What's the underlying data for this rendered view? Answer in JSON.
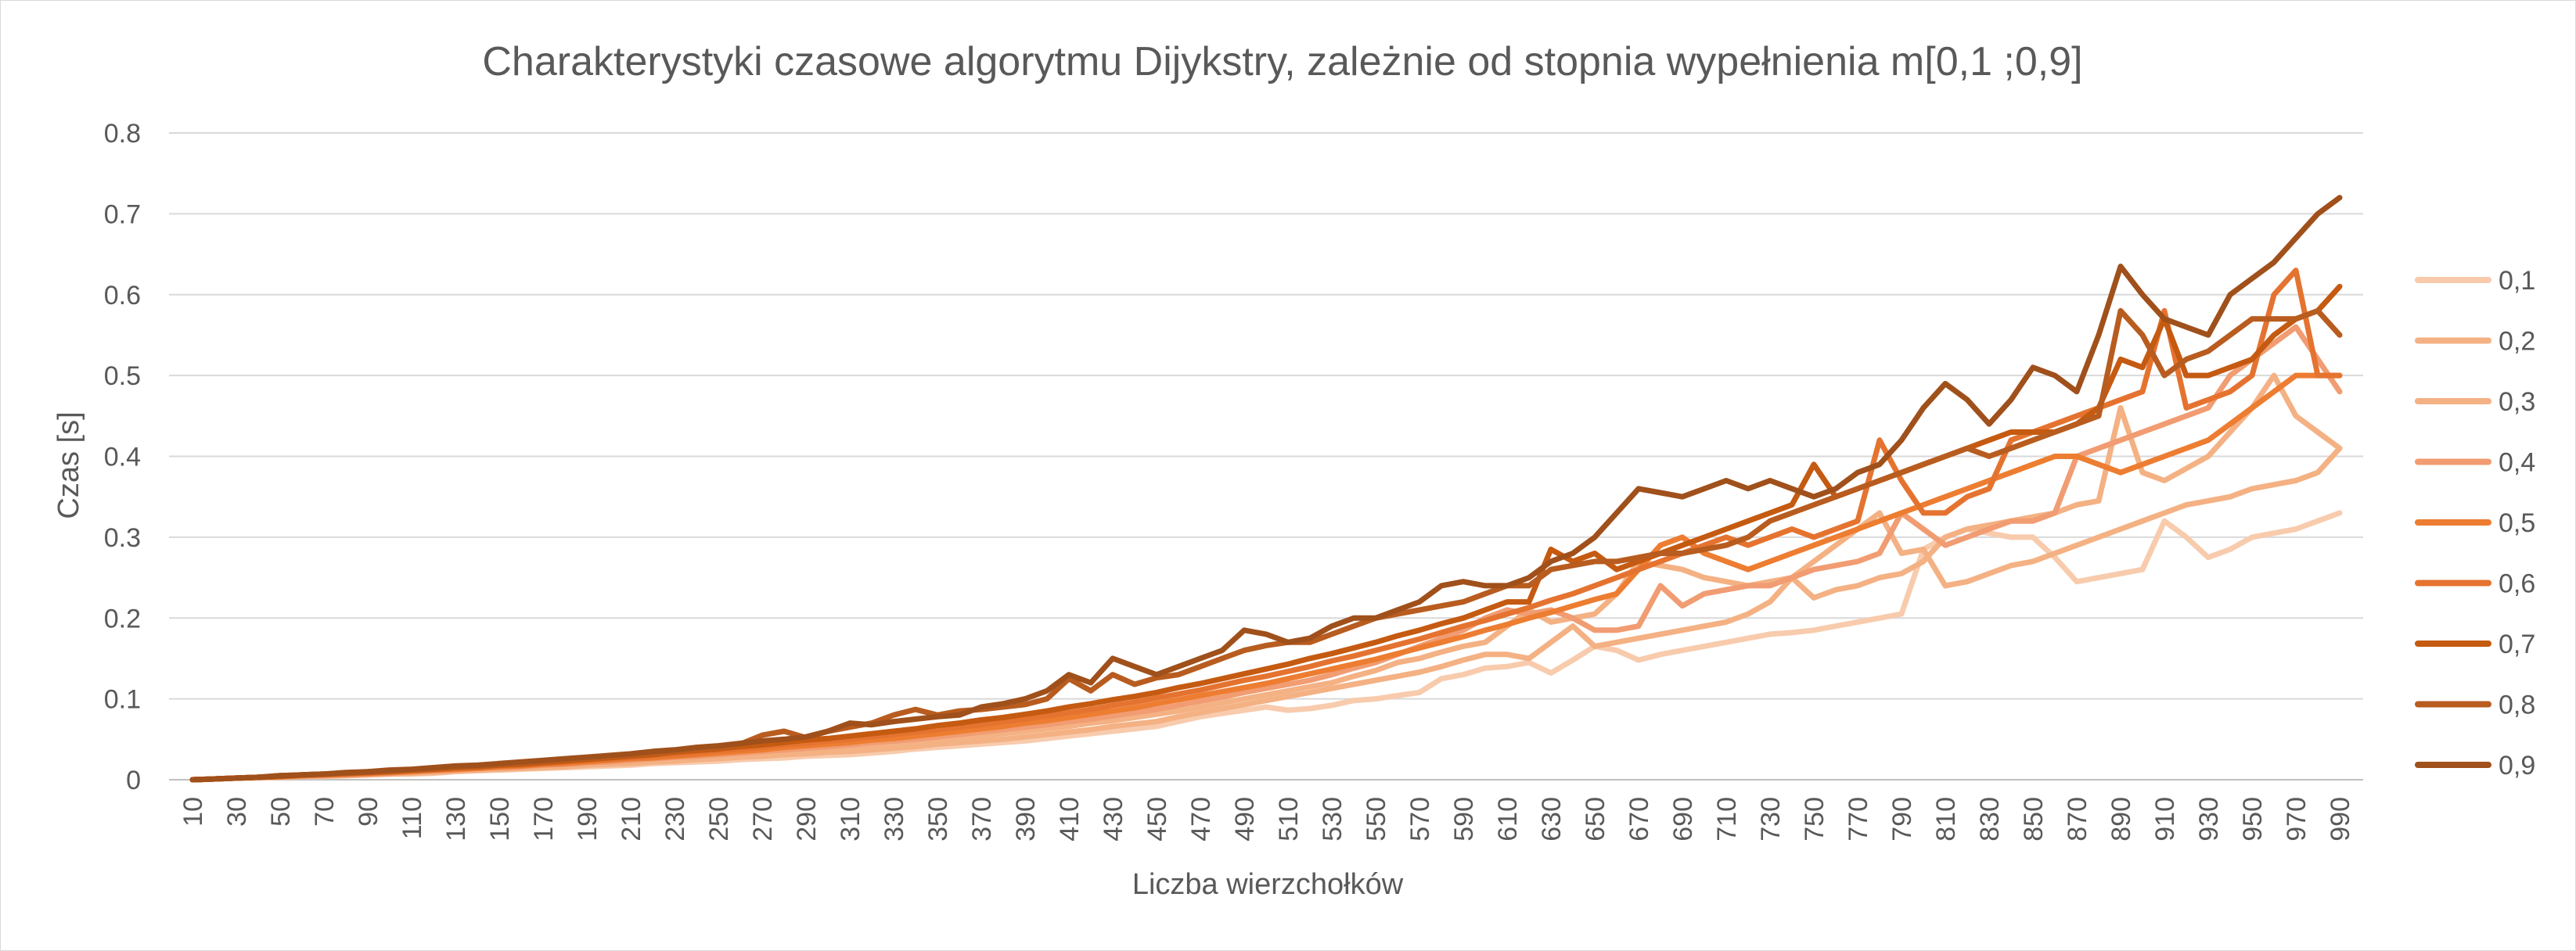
{
  "chart_data": {
    "type": "line",
    "title": "Charakterystyki czasowe algorytmu Dijykstry, zależnie od stopnia wypełnienia m[0,1 ;0,9]",
    "xlabel": "Liczba wierzchołków",
    "ylabel": "Czas [s]",
    "ylim": [
      0,
      0.8
    ],
    "yticks": [
      "0",
      "0.1",
      "0.2",
      "0.3",
      "0.4",
      "0.5",
      "0.6",
      "0.7",
      "0.8"
    ],
    "grid": true,
    "legend_position": "right",
    "x": [
      10,
      20,
      30,
      40,
      50,
      60,
      70,
      80,
      90,
      100,
      110,
      120,
      130,
      140,
      150,
      160,
      170,
      180,
      190,
      200,
      210,
      220,
      230,
      240,
      250,
      260,
      270,
      280,
      290,
      300,
      310,
      320,
      330,
      340,
      350,
      360,
      370,
      380,
      390,
      400,
      410,
      420,
      430,
      440,
      450,
      460,
      470,
      480,
      490,
      500,
      510,
      520,
      530,
      540,
      550,
      560,
      570,
      580,
      590,
      600,
      610,
      620,
      630,
      640,
      650,
      660,
      670,
      680,
      690,
      700,
      710,
      720,
      730,
      740,
      750,
      760,
      770,
      780,
      790,
      800,
      810,
      820,
      830,
      840,
      850,
      860,
      870,
      880,
      890,
      900,
      910,
      920,
      930,
      940,
      950,
      960,
      970,
      980,
      990
    ],
    "xticks": [
      "10",
      "30",
      "50",
      "70",
      "90",
      "110",
      "130",
      "150",
      "170",
      "190",
      "210",
      "230",
      "250",
      "270",
      "290",
      "310",
      "330",
      "350",
      "370",
      "390",
      "410",
      "430",
      "450",
      "470",
      "490",
      "510",
      "530",
      "550",
      "570",
      "590",
      "610",
      "630",
      "650",
      "670",
      "690",
      "710",
      "730",
      "750",
      "770",
      "790",
      "810",
      "830",
      "850",
      "870",
      "890",
      "910",
      "930",
      "950",
      "970",
      "990"
    ],
    "series": [
      {
        "name": "0,1",
        "color": "#f8cbad",
        "values": [
          0,
          0.001,
          0.002,
          0.002,
          0.003,
          0.004,
          0.004,
          0.005,
          0.006,
          0.007,
          0.007,
          0.008,
          0.01,
          0.011,
          0.012,
          0.013,
          0.014,
          0.015,
          0.016,
          0.017,
          0.018,
          0.02,
          0.021,
          0.022,
          0.023,
          0.025,
          0.026,
          0.027,
          0.029,
          0.03,
          0.031,
          0.033,
          0.035,
          0.038,
          0.04,
          0.042,
          0.044,
          0.046,
          0.048,
          0.051,
          0.054,
          0.057,
          0.06,
          0.063,
          0.066,
          0.072,
          0.078,
          0.082,
          0.086,
          0.09,
          0.086,
          0.088,
          0.092,
          0.098,
          0.1,
          0.104,
          0.108,
          0.125,
          0.13,
          0.138,
          0.14,
          0.145,
          0.132,
          0.148,
          0.165,
          0.16,
          0.148,
          0.155,
          0.16,
          0.165,
          0.17,
          0.175,
          0.18,
          0.182,
          0.185,
          0.19,
          0.195,
          0.2,
          0.205,
          0.285,
          0.3,
          0.31,
          0.305,
          0.3,
          0.3,
          0.275,
          0.245,
          0.25,
          0.255,
          0.26,
          0.32,
          0.3,
          0.275,
          0.285,
          0.3,
          0.305,
          0.31,
          0.32,
          0.33
        ]
      },
      {
        "name": "0,2",
        "color": "#f4b183",
        "values": [
          0,
          0.001,
          0.002,
          0.003,
          0.003,
          0.004,
          0.005,
          0.005,
          0.006,
          0.007,
          0.008,
          0.009,
          0.011,
          0.012,
          0.013,
          0.014,
          0.015,
          0.016,
          0.018,
          0.019,
          0.02,
          0.022,
          0.023,
          0.025,
          0.026,
          0.028,
          0.029,
          0.031,
          0.032,
          0.034,
          0.035,
          0.037,
          0.039,
          0.041,
          0.044,
          0.046,
          0.048,
          0.05,
          0.053,
          0.056,
          0.059,
          0.062,
          0.066,
          0.069,
          0.072,
          0.078,
          0.083,
          0.088,
          0.093,
          0.098,
          0.103,
          0.108,
          0.113,
          0.118,
          0.123,
          0.128,
          0.133,
          0.14,
          0.148,
          0.155,
          0.155,
          0.15,
          0.17,
          0.19,
          0.165,
          0.17,
          0.175,
          0.18,
          0.185,
          0.19,
          0.195,
          0.205,
          0.22,
          0.25,
          0.27,
          0.29,
          0.31,
          0.33,
          0.28,
          0.285,
          0.24,
          0.245,
          0.255,
          0.265,
          0.27,
          0.28,
          0.29,
          0.3,
          0.31,
          0.32,
          0.33,
          0.34,
          0.345,
          0.35,
          0.36,
          0.365,
          0.37,
          0.38,
          0.41
        ]
      },
      {
        "name": "0,3",
        "color": "#f4b183",
        "values": [
          0,
          0.001,
          0.002,
          0.003,
          0.004,
          0.004,
          0.005,
          0.006,
          0.007,
          0.008,
          0.009,
          0.01,
          0.012,
          0.013,
          0.014,
          0.015,
          0.017,
          0.018,
          0.019,
          0.021,
          0.022,
          0.024,
          0.025,
          0.027,
          0.029,
          0.031,
          0.032,
          0.034,
          0.036,
          0.038,
          0.04,
          0.042,
          0.044,
          0.046,
          0.049,
          0.051,
          0.054,
          0.057,
          0.06,
          0.063,
          0.066,
          0.07,
          0.073,
          0.077,
          0.081,
          0.085,
          0.09,
          0.095,
          0.1,
          0.105,
          0.11,
          0.115,
          0.12,
          0.128,
          0.135,
          0.145,
          0.15,
          0.158,
          0.165,
          0.17,
          0.19,
          0.21,
          0.195,
          0.2,
          0.205,
          0.23,
          0.27,
          0.265,
          0.26,
          0.25,
          0.245,
          0.24,
          0.245,
          0.25,
          0.225,
          0.235,
          0.24,
          0.25,
          0.255,
          0.27,
          0.3,
          0.31,
          0.315,
          0.32,
          0.325,
          0.33,
          0.34,
          0.345,
          0.46,
          0.38,
          0.37,
          0.385,
          0.4,
          0.43,
          0.46,
          0.5,
          0.45,
          0.43,
          0.41
        ]
      },
      {
        "name": "0,4",
        "color": "#f19c72",
        "values": [
          0,
          0.001,
          0.002,
          0.003,
          0.004,
          0.005,
          0.005,
          0.006,
          0.007,
          0.008,
          0.01,
          0.011,
          0.012,
          0.014,
          0.015,
          0.016,
          0.018,
          0.019,
          0.021,
          0.022,
          0.024,
          0.026,
          0.028,
          0.029,
          0.031,
          0.033,
          0.035,
          0.037,
          0.039,
          0.041,
          0.043,
          0.046,
          0.048,
          0.05,
          0.053,
          0.056,
          0.059,
          0.062,
          0.065,
          0.068,
          0.072,
          0.075,
          0.079,
          0.083,
          0.087,
          0.092,
          0.097,
          0.102,
          0.108,
          0.113,
          0.118,
          0.123,
          0.13,
          0.138,
          0.145,
          0.155,
          0.165,
          0.175,
          0.185,
          0.2,
          0.21,
          0.205,
          0.21,
          0.2,
          0.185,
          0.185,
          0.19,
          0.24,
          0.215,
          0.23,
          0.235,
          0.24,
          0.24,
          0.25,
          0.26,
          0.265,
          0.27,
          0.28,
          0.33,
          0.31,
          0.29,
          0.3,
          0.31,
          0.32,
          0.32,
          0.33,
          0.4,
          0.41,
          0.42,
          0.43,
          0.44,
          0.45,
          0.46,
          0.5,
          0.52,
          0.54,
          0.56,
          0.52,
          0.48
        ]
      },
      {
        "name": "0,5",
        "color": "#ed7d31",
        "values": [
          0,
          0.001,
          0.002,
          0.003,
          0.004,
          0.005,
          0.006,
          0.007,
          0.008,
          0.009,
          0.01,
          0.012,
          0.013,
          0.014,
          0.016,
          0.017,
          0.019,
          0.02,
          0.022,
          0.024,
          0.026,
          0.027,
          0.029,
          0.031,
          0.033,
          0.035,
          0.037,
          0.04,
          0.042,
          0.044,
          0.046,
          0.049,
          0.051,
          0.054,
          0.057,
          0.06,
          0.063,
          0.066,
          0.07,
          0.073,
          0.077,
          0.081,
          0.085,
          0.089,
          0.094,
          0.099,
          0.104,
          0.109,
          0.114,
          0.119,
          0.125,
          0.131,
          0.137,
          0.143,
          0.149,
          0.156,
          0.163,
          0.17,
          0.177,
          0.185,
          0.192,
          0.2,
          0.207,
          0.215,
          0.223,
          0.23,
          0.26,
          0.29,
          0.3,
          0.28,
          0.27,
          0.26,
          0.27,
          0.28,
          0.29,
          0.3,
          0.31,
          0.32,
          0.33,
          0.34,
          0.35,
          0.36,
          0.37,
          0.38,
          0.39,
          0.4,
          0.4,
          0.39,
          0.38,
          0.39,
          0.4,
          0.41,
          0.42,
          0.44,
          0.46,
          0.48,
          0.5,
          0.5,
          0.5
        ]
      },
      {
        "name": "0,6",
        "color": "#e57330",
        "values": [
          0,
          0.001,
          0.002,
          0.003,
          0.004,
          0.005,
          0.006,
          0.007,
          0.008,
          0.01,
          0.011,
          0.012,
          0.014,
          0.015,
          0.017,
          0.018,
          0.02,
          0.022,
          0.024,
          0.025,
          0.027,
          0.029,
          0.031,
          0.033,
          0.036,
          0.038,
          0.04,
          0.043,
          0.045,
          0.048,
          0.05,
          0.053,
          0.056,
          0.059,
          0.062,
          0.065,
          0.068,
          0.072,
          0.075,
          0.079,
          0.083,
          0.087,
          0.092,
          0.096,
          0.101,
          0.106,
          0.111,
          0.117,
          0.123,
          0.128,
          0.134,
          0.14,
          0.147,
          0.153,
          0.16,
          0.167,
          0.174,
          0.182,
          0.19,
          0.197,
          0.205,
          0.213,
          0.222,
          0.23,
          0.24,
          0.25,
          0.26,
          0.27,
          0.28,
          0.29,
          0.3,
          0.29,
          0.3,
          0.31,
          0.3,
          0.31,
          0.32,
          0.42,
          0.37,
          0.33,
          0.33,
          0.35,
          0.36,
          0.42,
          0.43,
          0.44,
          0.45,
          0.46,
          0.47,
          0.48,
          0.58,
          0.46,
          0.47,
          0.48,
          0.5,
          0.6,
          0.63,
          0.5,
          0.5
        ]
      },
      {
        "name": "0,7",
        "color": "#c55a11",
        "values": [
          0,
          0.001,
          0.002,
          0.003,
          0.004,
          0.006,
          0.007,
          0.008,
          0.009,
          0.01,
          0.012,
          0.013,
          0.015,
          0.016,
          0.018,
          0.019,
          0.021,
          0.023,
          0.025,
          0.027,
          0.029,
          0.031,
          0.034,
          0.036,
          0.038,
          0.041,
          0.043,
          0.046,
          0.049,
          0.051,
          0.054,
          0.057,
          0.06,
          0.063,
          0.067,
          0.07,
          0.074,
          0.077,
          0.081,
          0.085,
          0.09,
          0.094,
          0.099,
          0.103,
          0.108,
          0.114,
          0.119,
          0.125,
          0.131,
          0.137,
          0.143,
          0.15,
          0.156,
          0.163,
          0.17,
          0.178,
          0.185,
          0.193,
          0.2,
          0.21,
          0.22,
          0.22,
          0.285,
          0.27,
          0.28,
          0.26,
          0.27,
          0.28,
          0.29,
          0.3,
          0.31,
          0.32,
          0.33,
          0.34,
          0.39,
          0.35,
          0.36,
          0.37,
          0.38,
          0.39,
          0.4,
          0.41,
          0.42,
          0.43,
          0.43,
          0.43,
          0.44,
          0.46,
          0.52,
          0.51,
          0.57,
          0.5,
          0.5,
          0.51,
          0.52,
          0.55,
          0.57,
          0.58,
          0.61
        ]
      },
      {
        "name": "0,8",
        "color": "#b85c1f",
        "values": [
          0,
          0.001,
          0.002,
          0.003,
          0.005,
          0.006,
          0.007,
          0.008,
          0.01,
          0.011,
          0.012,
          0.014,
          0.016,
          0.017,
          0.019,
          0.021,
          0.023,
          0.025,
          0.027,
          0.029,
          0.031,
          0.033,
          0.036,
          0.038,
          0.04,
          0.044,
          0.055,
          0.06,
          0.052,
          0.06,
          0.065,
          0.07,
          0.08,
          0.087,
          0.08,
          0.085,
          0.087,
          0.09,
          0.093,
          0.1,
          0.125,
          0.11,
          0.13,
          0.118,
          0.126,
          0.13,
          0.14,
          0.15,
          0.16,
          0.166,
          0.17,
          0.17,
          0.18,
          0.19,
          0.2,
          0.205,
          0.21,
          0.215,
          0.22,
          0.23,
          0.24,
          0.24,
          0.26,
          0.265,
          0.27,
          0.27,
          0.275,
          0.28,
          0.28,
          0.285,
          0.29,
          0.3,
          0.32,
          0.33,
          0.34,
          0.35,
          0.36,
          0.37,
          0.38,
          0.39,
          0.4,
          0.41,
          0.4,
          0.41,
          0.42,
          0.43,
          0.44,
          0.45,
          0.58,
          0.55,
          0.5,
          0.52,
          0.53,
          0.55,
          0.57,
          0.57,
          0.57,
          0.58,
          0.55
        ]
      },
      {
        "name": "0,9",
        "color": "#a0501b",
        "values": [
          0,
          0.001,
          0.002,
          0.003,
          0.005,
          0.006,
          0.007,
          0.009,
          0.01,
          0.012,
          0.013,
          0.015,
          0.017,
          0.018,
          0.02,
          0.022,
          0.024,
          0.026,
          0.028,
          0.03,
          0.032,
          0.035,
          0.037,
          0.04,
          0.042,
          0.045,
          0.048,
          0.05,
          0.053,
          0.06,
          0.07,
          0.068,
          0.072,
          0.075,
          0.078,
          0.08,
          0.09,
          0.094,
          0.1,
          0.11,
          0.13,
          0.12,
          0.15,
          0.14,
          0.13,
          0.14,
          0.15,
          0.16,
          0.185,
          0.18,
          0.17,
          0.175,
          0.19,
          0.2,
          0.2,
          0.21,
          0.22,
          0.24,
          0.245,
          0.24,
          0.24,
          0.25,
          0.27,
          0.28,
          0.3,
          0.33,
          0.36,
          0.355,
          0.35,
          0.36,
          0.37,
          0.36,
          0.37,
          0.36,
          0.35,
          0.36,
          0.38,
          0.39,
          0.42,
          0.46,
          0.49,
          0.47,
          0.44,
          0.47,
          0.51,
          0.5,
          0.48,
          0.55,
          0.635,
          0.6,
          0.57,
          0.56,
          0.55,
          0.6,
          0.62,
          0.64,
          0.67,
          0.7,
          0.72
        ]
      }
    ]
  }
}
